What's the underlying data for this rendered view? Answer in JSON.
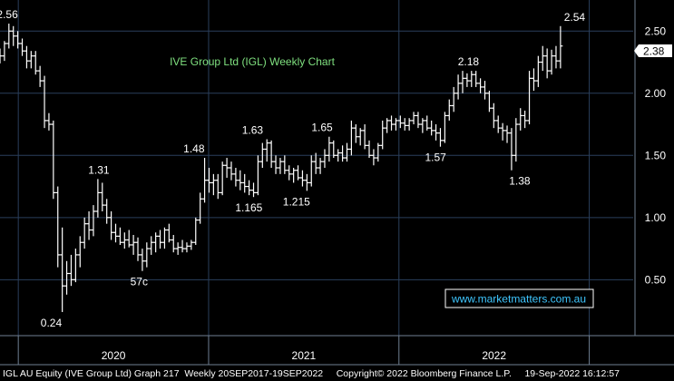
{
  "chart_data": {
    "type": "ohlc",
    "title": "IVE Group Ltd (IGL) Weekly Chart",
    "footer": "IGL AU Equity (IVE Group Ltd) Graph 217  Weekly 20SEP2017-19SEP2022     Copyright© 2022 Bloomberg Finance L.P.     19-Sep-2022 16:12:57",
    "watermark": "www.marketmatters.com.au",
    "current_price_label": "2.38",
    "y_ticks": [
      "0.50",
      "1.00",
      "1.50",
      "2.00",
      "2.50"
    ],
    "y_tick_values": [
      0.5,
      1.0,
      1.5,
      2.0,
      2.5
    ],
    "ylim": [
      0.05,
      2.75
    ],
    "x_ticks": [
      "2020",
      "2021",
      "2022"
    ],
    "x_range_weeks": [
      0,
      173
    ],
    "year_boundaries_weeks": [
      5,
      57,
      109,
      161
    ],
    "year_label_weeks": [
      31,
      83,
      135
    ],
    "annotations": [
      {
        "text": "2.56",
        "week": 2,
        "value": 2.56,
        "pos": "above"
      },
      {
        "text": "0.24",
        "week": 14,
        "value": 0.24,
        "pos": "below"
      },
      {
        "text": "1.31",
        "week": 27,
        "value": 1.31,
        "pos": "above"
      },
      {
        "text": "57c",
        "week": 38,
        "value": 0.57,
        "pos": "below"
      },
      {
        "text": "1.48",
        "week": 53,
        "value": 1.48,
        "pos": "above"
      },
      {
        "text": "1.165",
        "week": 68,
        "value": 1.165,
        "pos": "below"
      },
      {
        "text": "1.63",
        "week": 69,
        "value": 1.63,
        "pos": "above"
      },
      {
        "text": "1.215",
        "week": 81,
        "value": 1.215,
        "pos": "below"
      },
      {
        "text": "1.65",
        "week": 88,
        "value": 1.65,
        "pos": "above"
      },
      {
        "text": "1.57",
        "week": 119,
        "value": 1.57,
        "pos": "below"
      },
      {
        "text": "2.18",
        "week": 128,
        "value": 2.18,
        "pos": "above"
      },
      {
        "text": "1.38",
        "week": 142,
        "value": 1.38,
        "pos": "below"
      },
      {
        "text": "2.54",
        "week": 157,
        "value": 2.54,
        "pos": "above"
      }
    ],
    "series": [
      {
        "values": [
          [
            2.3,
            2.36,
            2.24,
            2.3
          ],
          [
            2.3,
            2.42,
            2.26,
            2.4
          ],
          [
            2.4,
            2.56,
            2.36,
            2.5
          ],
          [
            2.5,
            2.54,
            2.38,
            2.46
          ],
          [
            2.46,
            2.5,
            2.36,
            2.4
          ],
          [
            2.4,
            2.44,
            2.3,
            2.34
          ],
          [
            2.34,
            2.38,
            2.2,
            2.26
          ],
          [
            2.26,
            2.34,
            2.2,
            2.3
          ],
          [
            2.3,
            2.34,
            2.15,
            2.18
          ],
          [
            2.18,
            2.22,
            2.05,
            2.1
          ],
          [
            2.1,
            2.14,
            1.72,
            1.78
          ],
          [
            1.78,
            1.84,
            1.7,
            1.75
          ],
          [
            1.75,
            1.78,
            1.15,
            1.2
          ],
          [
            1.2,
            1.25,
            0.6,
            0.7
          ],
          [
            0.7,
            0.92,
            0.24,
            0.45
          ],
          [
            0.45,
            0.65,
            0.38,
            0.55
          ],
          [
            0.55,
            0.7,
            0.45,
            0.5
          ],
          [
            0.5,
            0.75,
            0.48,
            0.7
          ],
          [
            0.7,
            0.85,
            0.6,
            0.8
          ],
          [
            0.8,
            1.0,
            0.75,
            0.95
          ],
          [
            0.95,
            1.05,
            0.82,
            0.9
          ],
          [
            0.9,
            1.1,
            0.85,
            1.05
          ],
          [
            1.05,
            1.31,
            1.0,
            1.2
          ],
          [
            1.2,
            1.28,
            1.05,
            1.1
          ],
          [
            1.1,
            1.15,
            0.95,
            1.0
          ],
          [
            1.0,
            1.05,
            0.82,
            0.88
          ],
          [
            0.88,
            0.95,
            0.8,
            0.85
          ],
          [
            0.85,
            0.92,
            0.78,
            0.8
          ],
          [
            0.8,
            0.88,
            0.75,
            0.82
          ],
          [
            0.82,
            0.9,
            0.76,
            0.78
          ],
          [
            0.78,
            0.86,
            0.7,
            0.8
          ],
          [
            0.8,
            0.84,
            0.65,
            0.7
          ],
          [
            0.7,
            0.75,
            0.57,
            0.65
          ],
          [
            0.65,
            0.8,
            0.6,
            0.75
          ],
          [
            0.75,
            0.85,
            0.7,
            0.8
          ],
          [
            0.8,
            0.88,
            0.72,
            0.85
          ],
          [
            0.85,
            0.9,
            0.75,
            0.8
          ],
          [
            0.8,
            0.92,
            0.75,
            0.9
          ],
          [
            0.9,
            0.95,
            0.8,
            0.82
          ],
          [
            0.82,
            0.86,
            0.72,
            0.75
          ],
          [
            0.75,
            0.8,
            0.7,
            0.76
          ],
          [
            0.76,
            0.82,
            0.72,
            0.75
          ],
          [
            0.75,
            0.8,
            0.72,
            0.77
          ],
          [
            0.77,
            0.82,
            0.74,
            0.8
          ],
          [
            0.8,
            1.0,
            0.78,
            0.98
          ],
          [
            0.98,
            1.2,
            0.95,
            1.15
          ],
          [
            1.15,
            1.48,
            1.12,
            1.3
          ],
          [
            1.3,
            1.4,
            1.2,
            1.28
          ],
          [
            1.28,
            1.35,
            1.18,
            1.3
          ],
          [
            1.3,
            1.35,
            1.15,
            1.2
          ],
          [
            1.2,
            1.45,
            1.18,
            1.42
          ],
          [
            1.42,
            1.48,
            1.32,
            1.4
          ],
          [
            1.4,
            1.45,
            1.3,
            1.35
          ],
          [
            1.35,
            1.4,
            1.25,
            1.3
          ],
          [
            1.3,
            1.38,
            1.22,
            1.28
          ],
          [
            1.28,
            1.35,
            1.2,
            1.25
          ],
          [
            1.25,
            1.3,
            1.18,
            1.22
          ],
          [
            1.22,
            1.28,
            1.165,
            1.2
          ],
          [
            1.2,
            1.5,
            1.18,
            1.45
          ],
          [
            1.45,
            1.6,
            1.4,
            1.55
          ],
          [
            1.55,
            1.63,
            1.45,
            1.6
          ],
          [
            1.6,
            1.62,
            1.4,
            1.45
          ],
          [
            1.45,
            1.5,
            1.35,
            1.4
          ],
          [
            1.4,
            1.48,
            1.35,
            1.45
          ],
          [
            1.45,
            1.5,
            1.35,
            1.38
          ],
          [
            1.38,
            1.42,
            1.3,
            1.35
          ],
          [
            1.35,
            1.4,
            1.28,
            1.38
          ],
          [
            1.38,
            1.42,
            1.3,
            1.32
          ],
          [
            1.32,
            1.38,
            1.25,
            1.3
          ],
          [
            1.3,
            1.35,
            1.215,
            1.28
          ],
          [
            1.28,
            1.5,
            1.25,
            1.45
          ],
          [
            1.45,
            1.52,
            1.35,
            1.4
          ],
          [
            1.4,
            1.48,
            1.35,
            1.45
          ],
          [
            1.45,
            1.55,
            1.4,
            1.5
          ],
          [
            1.5,
            1.65,
            1.45,
            1.6
          ],
          [
            1.6,
            1.62,
            1.48,
            1.5
          ],
          [
            1.5,
            1.55,
            1.45,
            1.52
          ],
          [
            1.52,
            1.58,
            1.45,
            1.48
          ],
          [
            1.48,
            1.6,
            1.45,
            1.55
          ],
          [
            1.55,
            1.78,
            1.5,
            1.72
          ],
          [
            1.72,
            1.75,
            1.6,
            1.65
          ],
          [
            1.65,
            1.72,
            1.58,
            1.7
          ],
          [
            1.7,
            1.75,
            1.55,
            1.58
          ],
          [
            1.58,
            1.62,
            1.48,
            1.5
          ],
          [
            1.5,
            1.55,
            1.42,
            1.48
          ],
          [
            1.48,
            1.6,
            1.45,
            1.58
          ],
          [
            1.58,
            1.78,
            1.55,
            1.72
          ],
          [
            1.72,
            1.8,
            1.68,
            1.78
          ],
          [
            1.78,
            1.82,
            1.7,
            1.75
          ],
          [
            1.75,
            1.8,
            1.7,
            1.78
          ],
          [
            1.78,
            1.82,
            1.72,
            1.76
          ],
          [
            1.76,
            1.8,
            1.7,
            1.74
          ],
          [
            1.74,
            1.8,
            1.7,
            1.78
          ],
          [
            1.78,
            1.85,
            1.75,
            1.82
          ],
          [
            1.82,
            1.85,
            1.72,
            1.75
          ],
          [
            1.75,
            1.8,
            1.68,
            1.78
          ],
          [
            1.78,
            1.82,
            1.7,
            1.72
          ],
          [
            1.72,
            1.78,
            1.66,
            1.7
          ],
          [
            1.7,
            1.75,
            1.62,
            1.68
          ],
          [
            1.68,
            1.72,
            1.57,
            1.62
          ],
          [
            1.62,
            1.85,
            1.6,
            1.82
          ],
          [
            1.82,
            1.95,
            1.78,
            1.9
          ],
          [
            1.9,
            2.05,
            1.85,
            2.0
          ],
          [
            2.0,
            2.15,
            1.95,
            2.08
          ],
          [
            2.08,
            2.18,
            2.0,
            2.12
          ],
          [
            2.12,
            2.16,
            2.05,
            2.1
          ],
          [
            2.1,
            2.18,
            2.05,
            2.15
          ],
          [
            2.15,
            2.18,
            2.05,
            2.08
          ],
          [
            2.08,
            2.12,
            2.0,
            2.05
          ],
          [
            2.05,
            2.1,
            1.95,
            2.0
          ],
          [
            2.0,
            2.02,
            1.85,
            1.88
          ],
          [
            1.88,
            1.92,
            1.72,
            1.78
          ],
          [
            1.78,
            1.82,
            1.68,
            1.72
          ],
          [
            1.72,
            1.76,
            1.62,
            1.7
          ],
          [
            1.7,
            1.74,
            1.6,
            1.68
          ],
          [
            1.68,
            1.72,
            1.38,
            1.5
          ],
          [
            1.5,
            1.8,
            1.45,
            1.75
          ],
          [
            1.75,
            1.88,
            1.7,
            1.82
          ],
          [
            1.82,
            1.86,
            1.72,
            1.78
          ],
          [
            1.78,
            2.18,
            1.75,
            2.12
          ],
          [
            2.12,
            2.2,
            2.02,
            2.1
          ],
          [
            2.1,
            2.3,
            2.05,
            2.25
          ],
          [
            2.25,
            2.38,
            2.18,
            2.3
          ],
          [
            2.3,
            2.36,
            2.12,
            2.18
          ],
          [
            2.18,
            2.35,
            2.15,
            2.3
          ],
          [
            2.3,
            2.38,
            2.2,
            2.26
          ],
          [
            2.26,
            2.54,
            2.2,
            2.38
          ]
        ]
      }
    ],
    "series_weeks": [
      0,
      1,
      2,
      3,
      4,
      5,
      6,
      7,
      8,
      9,
      10,
      11,
      12,
      13,
      14,
      15,
      16,
      17,
      18,
      19,
      20,
      21,
      22,
      23,
      24,
      25,
      26,
      27,
      28,
      29,
      30,
      31,
      32,
      33,
      34,
      35,
      36,
      37,
      38,
      39,
      40,
      41,
      42,
      43,
      44,
      45,
      46,
      47,
      48,
      49,
      50,
      51,
      52,
      53,
      54,
      55,
      56,
      57,
      58,
      59,
      60,
      61,
      62,
      63,
      64,
      65,
      66,
      67,
      68,
      69,
      70,
      71,
      72,
      73,
      74,
      75,
      76,
      77,
      78,
      79,
      80,
      81,
      82,
      83,
      84,
      85,
      86,
      87,
      88,
      89,
      90,
      91,
      92,
      93,
      94,
      95,
      96,
      97,
      98,
      99,
      100,
      101,
      102,
      103,
      104,
      105,
      106,
      107,
      108,
      109,
      110,
      111,
      112,
      113,
      114,
      115,
      116,
      117,
      118,
      119,
      120,
      121,
      122,
      123,
      124,
      125,
      126,
      127,
      128,
      129,
      130
    ],
    "colors": {
      "bars": "#ffffff",
      "grid": "#2a3f5c",
      "title": "#7fe07f",
      "watermark": "#3fc7ff",
      "background": "#000000"
    }
  }
}
